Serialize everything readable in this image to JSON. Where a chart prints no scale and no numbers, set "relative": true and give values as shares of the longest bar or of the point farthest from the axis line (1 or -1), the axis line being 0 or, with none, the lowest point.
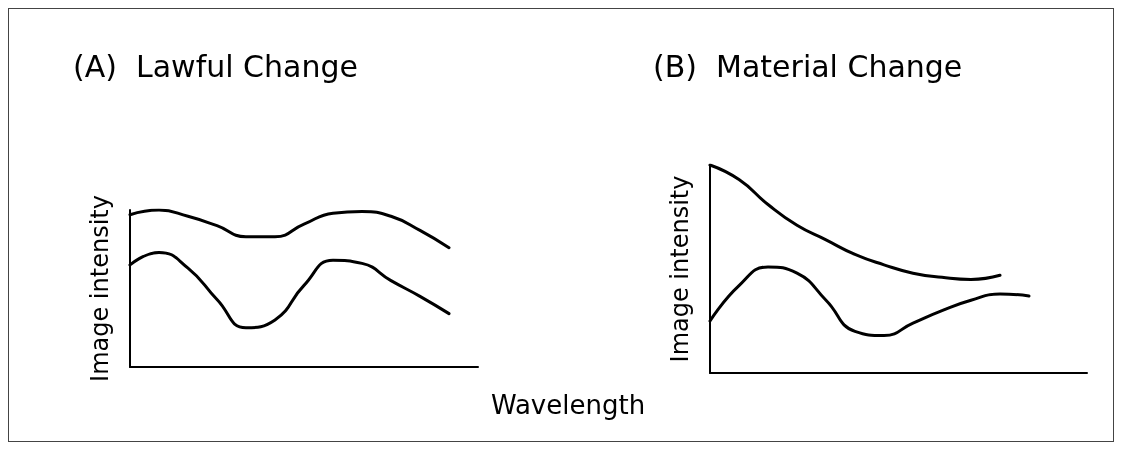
{
  "chart_data": [
    {
      "type": "line",
      "title": "(A)  Lawful Change",
      "xlabel": "Wavelength",
      "ylabel": "Image intensity",
      "relative": true,
      "marker": "none",
      "categories": [
        null,
        null,
        null,
        null,
        null,
        null,
        null,
        null,
        null,
        null,
        null,
        null,
        null
      ],
      "series": [
        {
          "color": "#000000",
          "values": [
            0.97,
            1.0,
            0.96,
            0.9,
            0.83,
            0.83,
            0.91,
            0.98,
            0.99,
            0.96,
            0.87,
            0.76,
            null
          ]
        },
        {
          "color": "#000000",
          "values": [
            0.65,
            0.73,
            0.63,
            0.43,
            0.25,
            0.3,
            0.52,
            0.68,
            0.66,
            0.55,
            0.45,
            0.34,
            null
          ]
        }
      ]
    },
    {
      "type": "line",
      "title": "(B)  Material Change",
      "ylabel": "Image intensity",
      "relative": true,
      "marker": "none",
      "categories": [
        null,
        null,
        null,
        null,
        null,
        null,
        null,
        null,
        null,
        null,
        null,
        null,
        null,
        null
      ],
      "series": [
        {
          "color": "#000000",
          "values": [
            1.0,
            0.93,
            0.81,
            0.71,
            0.64,
            0.57,
            0.52,
            0.48,
            0.46,
            0.45,
            0.47,
            null,
            null,
            null
          ]
        },
        {
          "color": "#000000",
          "values": [
            0.25,
            0.42,
            0.51,
            0.48,
            0.35,
            0.2,
            0.18,
            0.24,
            0.3,
            0.35,
            0.38,
            0.37,
            null,
            null
          ]
        }
      ]
    }
  ]
}
